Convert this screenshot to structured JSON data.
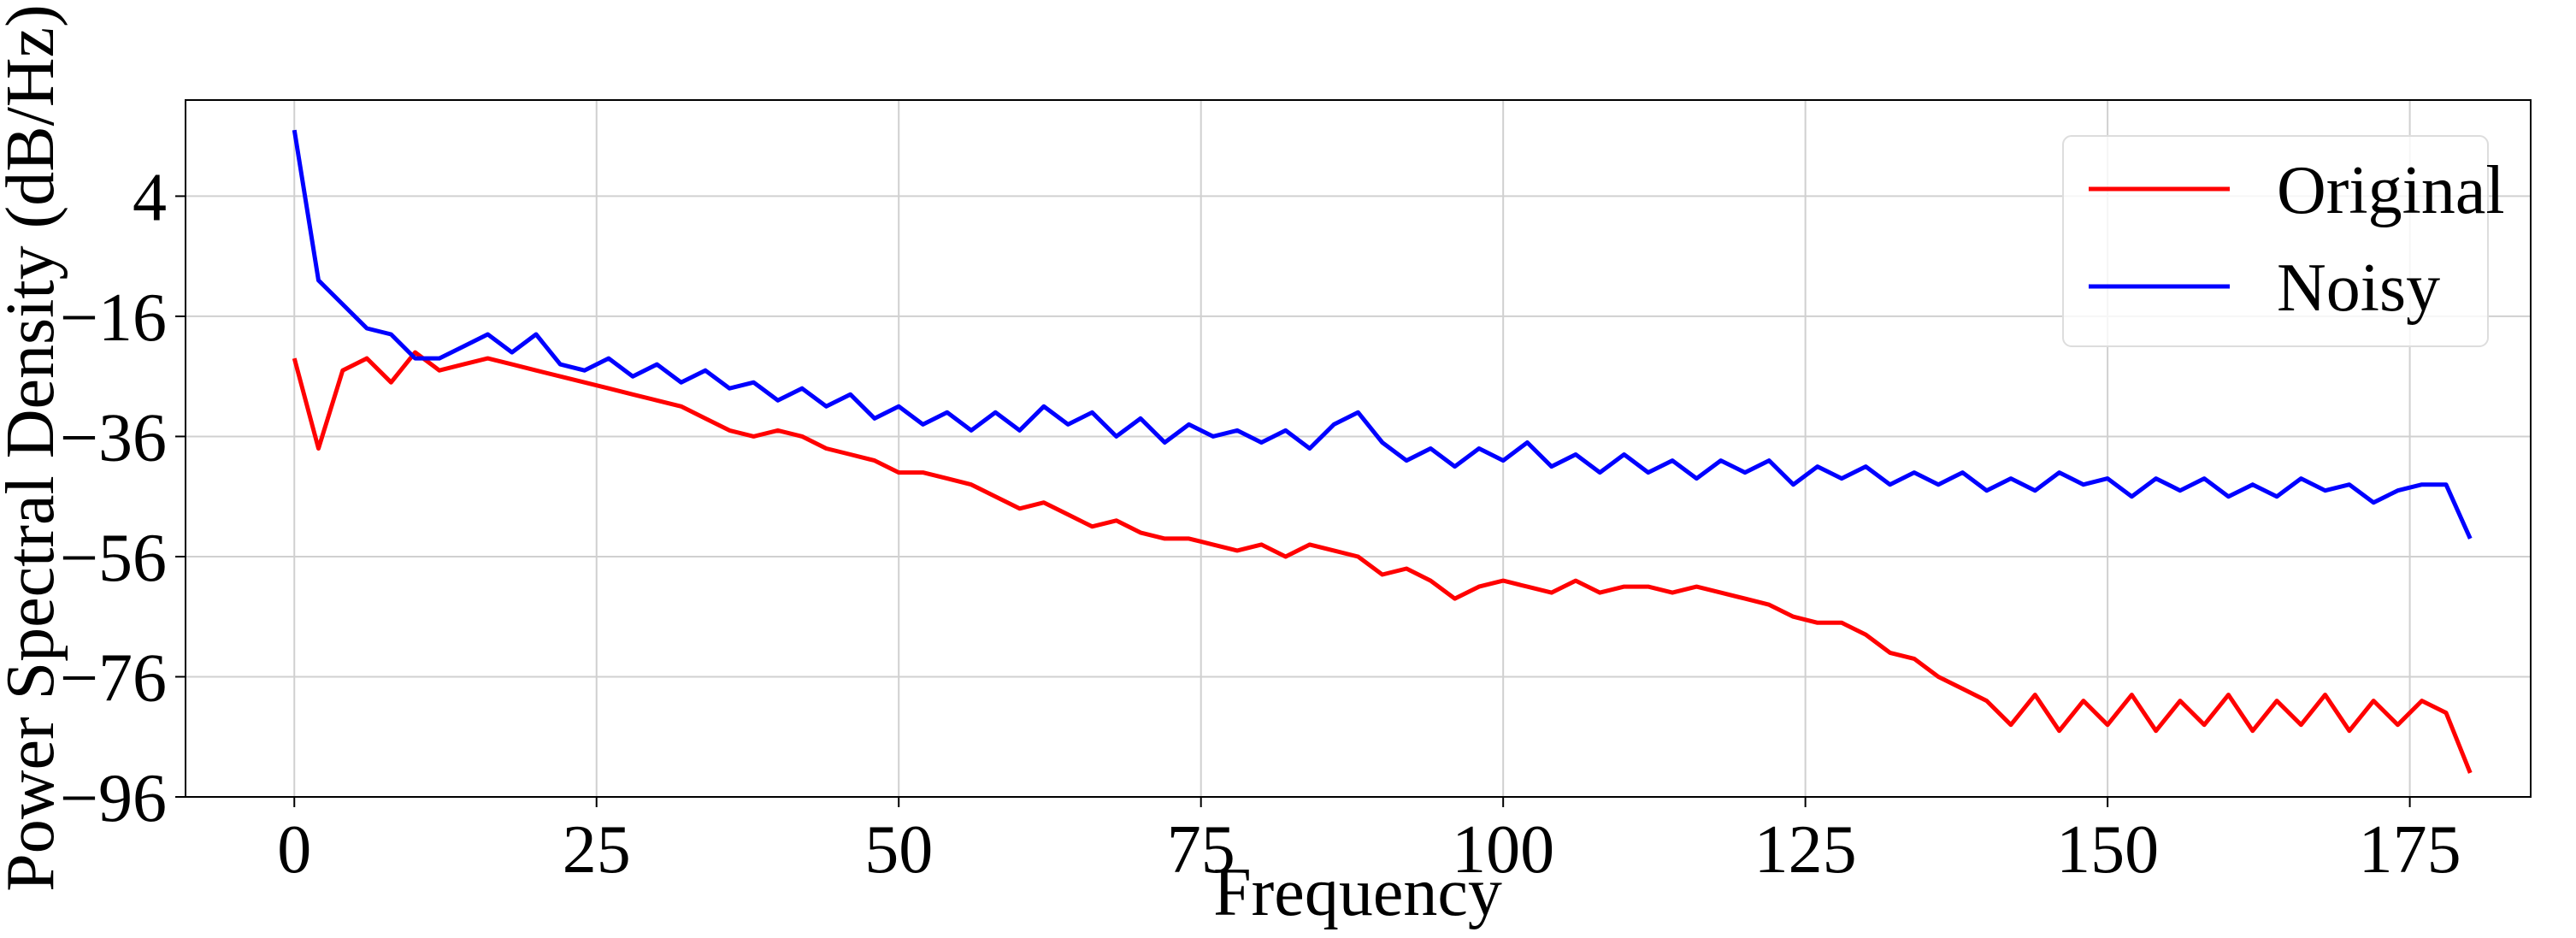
{
  "chart_data": {
    "type": "line",
    "xlabel": "Frequency",
    "ylabel": "Power Spectral Density (dB/Hz)",
    "x": [
      0,
      2,
      4,
      6,
      8,
      10,
      12,
      14,
      16,
      18,
      20,
      22,
      24,
      26,
      28,
      30,
      32,
      34,
      36,
      38,
      40,
      42,
      44,
      46,
      48,
      50,
      52,
      54,
      56,
      58,
      60,
      62,
      64,
      66,
      68,
      70,
      72,
      74,
      76,
      78,
      80,
      82,
      84,
      86,
      88,
      90,
      92,
      94,
      96,
      98,
      100,
      102,
      104,
      106,
      108,
      110,
      112,
      114,
      116,
      118,
      120,
      122,
      124,
      126,
      128,
      130,
      132,
      134,
      136,
      138,
      140,
      142,
      144,
      146,
      148,
      150,
      152,
      154,
      156,
      158,
      160,
      162,
      164,
      166,
      168,
      170,
      172,
      174,
      176,
      178,
      180
    ],
    "series": [
      {
        "name": "Original",
        "color": "#ff0000",
        "values": [
          -23,
          -38,
          -25,
          -23,
          -27,
          -22,
          -25,
          -24,
          -23,
          -24,
          -25,
          -26,
          -27,
          -28,
          -29,
          -30,
          -31,
          -33,
          -35,
          -36,
          -35,
          -36,
          -38,
          -39,
          -40,
          -42,
          -42,
          -43,
          -44,
          -46,
          -48,
          -47,
          -49,
          -51,
          -50,
          -52,
          -53,
          -53,
          -54,
          -55,
          -54,
          -56,
          -54,
          -55,
          -56,
          -59,
          -58,
          -60,
          -63,
          -61,
          -60,
          -61,
          -62,
          -60,
          -62,
          -61,
          -61,
          -62,
          -61,
          -62,
          -63,
          -64,
          -66,
          -67,
          -67,
          -69,
          -72,
          -73,
          -76,
          -78,
          -80,
          -84,
          -79,
          -85,
          -80,
          -84,
          -79,
          -85,
          -80,
          -84,
          -79,
          -85,
          -80,
          -84,
          -79,
          -85,
          -80,
          -84,
          -80,
          -82,
          -92
        ]
      },
      {
        "name": "Noisy",
        "color": "#0000ff",
        "values": [
          15,
          -10,
          -14,
          -18,
          -19,
          -23,
          -23,
          -21,
          -19,
          -22,
          -19,
          -24,
          -25,
          -23,
          -26,
          -24,
          -27,
          -25,
          -28,
          -27,
          -30,
          -28,
          -31,
          -29,
          -33,
          -31,
          -34,
          -32,
          -35,
          -32,
          -35,
          -31,
          -34,
          -32,
          -36,
          -33,
          -37,
          -34,
          -36,
          -35,
          -37,
          -35,
          -38,
          -34,
          -32,
          -37,
          -40,
          -38,
          -41,
          -38,
          -40,
          -37,
          -41,
          -39,
          -42,
          -39,
          -42,
          -40,
          -43,
          -40,
          -42,
          -40,
          -44,
          -41,
          -43,
          -41,
          -44,
          -42,
          -44,
          -42,
          -45,
          -43,
          -45,
          -42,
          -44,
          -43,
          -46,
          -43,
          -45,
          -43,
          -46,
          -44,
          -46,
          -43,
          -45,
          -44,
          -47,
          -45,
          -44,
          -44,
          -53
        ]
      }
    ],
    "xlim": [
      -9,
      185
    ],
    "ylim": [
      -96,
      20
    ],
    "xticks": [
      0,
      25,
      50,
      75,
      100,
      125,
      150,
      175
    ],
    "yticks": [
      4,
      {
        "value": -16,
        "label": "−16"
      },
      {
        "value": -36,
        "label": "−36"
      },
      {
        "value": -56,
        "label": "−56"
      },
      {
        "value": -76,
        "label": "−76"
      },
      {
        "value": -96,
        "label": "−96"
      }
    ],
    "grid": true,
    "legend": "upper right"
  }
}
